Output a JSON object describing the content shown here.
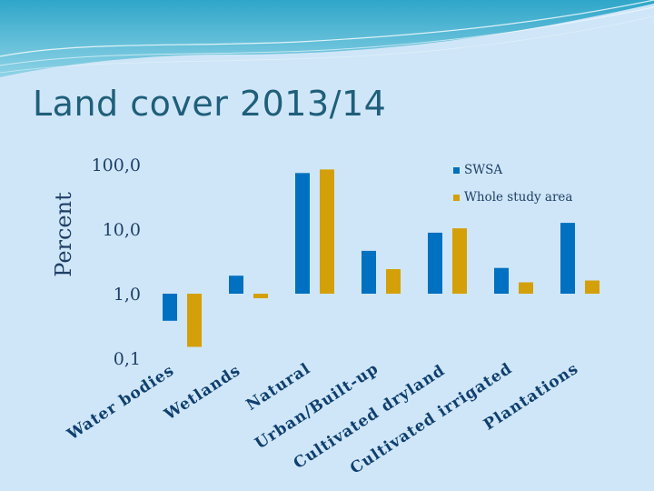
{
  "slide": {
    "title": "Land cover 2013/14"
  },
  "chart_data": {
    "type": "bar",
    "title": "",
    "ylabel": "Percent",
    "y_scale": "log",
    "ylim": [
      0.1,
      100
    ],
    "y_ticks": [
      100,
      10,
      1,
      0.1
    ],
    "y_tick_labels": [
      "100,0",
      "10,0",
      "1,0",
      "0,1"
    ],
    "categories": [
      "Water bodies",
      "Wetlands",
      "Natural",
      "Urban/Built-up",
      "Cultivated dryland",
      "Cultivated irrigated",
      "Plantations"
    ],
    "series": [
      {
        "name": "SWSA",
        "color": "#0070c0",
        "values": [
          0.38,
          1.9,
          74,
          4.6,
          8.8,
          2.5,
          12.5
        ]
      },
      {
        "name": "Whole study area",
        "color": "#d4a00a",
        "values": [
          0.15,
          0.85,
          84,
          2.4,
          10.3,
          1.5,
          1.6
        ]
      }
    ],
    "legend_position": "top-right",
    "grid": false
  }
}
